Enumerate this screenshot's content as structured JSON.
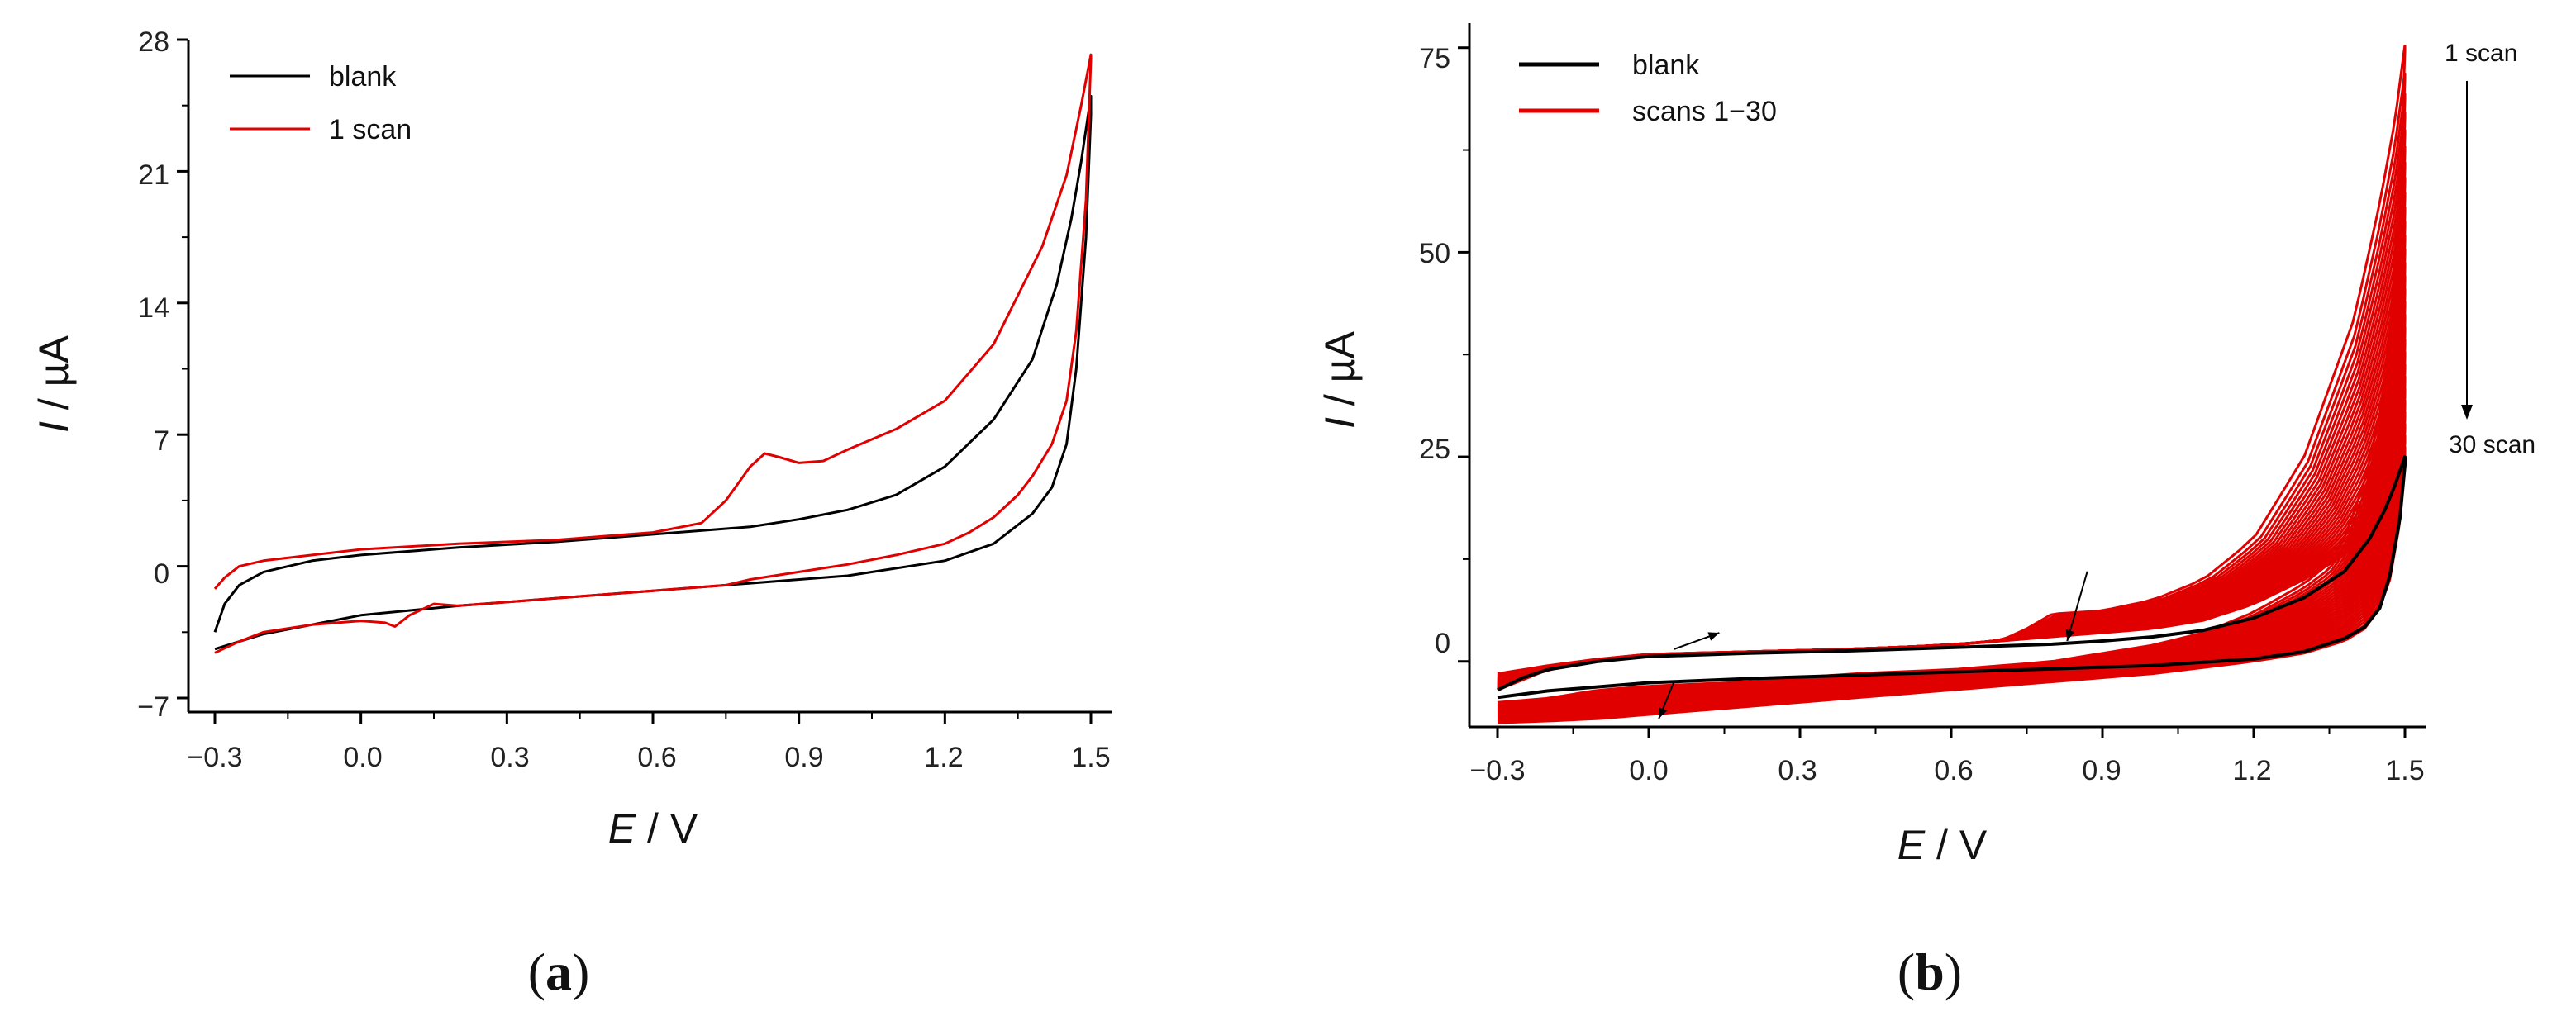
{
  "chart_data": [
    {
      "type": "line",
      "panel": "a",
      "panel_label": "a",
      "xlabel_var": "E",
      "xlabel_unit": " / V",
      "ylabel_var": "I",
      "ylabel_unit": " / µA",
      "xlim": [
        -0.3,
        1.5
      ],
      "ylim": [
        -7,
        28
      ],
      "xticks": [
        -0.3,
        0.0,
        0.3,
        0.6,
        0.9,
        1.2,
        1.5
      ],
      "xtick_labels": [
        "−0.3",
        "0.0",
        "0.3",
        "0.6",
        "0.9",
        "1.2",
        "1.5"
      ],
      "yticks": [
        -7,
        0,
        7,
        14,
        21,
        28
      ],
      "ytick_labels": [
        "−7",
        "0",
        "7",
        "14",
        "21",
        "28"
      ],
      "legend_position": "top-left",
      "series": [
        {
          "name": "blank",
          "color": "#000000",
          "x": [
            -0.3,
            -0.28,
            -0.25,
            -0.2,
            -0.1,
            0.0,
            0.2,
            0.4,
            0.6,
            0.8,
            0.9,
            1.0,
            1.1,
            1.2,
            1.3,
            1.38,
            1.43,
            1.46,
            1.48,
            1.5,
            1.5,
            1.49,
            1.47,
            1.45,
            1.42,
            1.38,
            1.3,
            1.2,
            1.0,
            0.8,
            0.6,
            0.4,
            0.2,
            0.0,
            -0.1,
            -0.2,
            -0.25,
            -0.3
          ],
          "y": [
            -3.5,
            -2.0,
            -1.0,
            -0.3,
            0.3,
            0.6,
            1.0,
            1.3,
            1.7,
            2.1,
            2.5,
            3.0,
            3.8,
            5.3,
            7.8,
            11.0,
            15.0,
            18.5,
            21.5,
            25.0,
            24.0,
            17.5,
            10.5,
            6.5,
            4.2,
            2.8,
            1.2,
            0.3,
            -0.5,
            -0.9,
            -1.3,
            -1.7,
            -2.1,
            -2.6,
            -3.1,
            -3.6,
            -4.0,
            -4.4
          ]
        },
        {
          "name": "1 scan",
          "color": "#e00000",
          "x": [
            -0.3,
            -0.28,
            -0.25,
            -0.2,
            -0.1,
            0.0,
            0.2,
            0.4,
            0.6,
            0.7,
            0.75,
            0.8,
            0.83,
            0.86,
            0.9,
            0.95,
            1.0,
            1.1,
            1.2,
            1.3,
            1.4,
            1.45,
            1.48,
            1.5,
            1.5,
            1.49,
            1.47,
            1.45,
            1.42,
            1.38,
            1.35,
            1.3,
            1.25,
            1.2,
            1.1,
            1.0,
            0.9,
            0.8,
            0.75,
            0.7,
            0.6,
            0.5,
            0.4,
            0.3,
            0.2,
            0.15,
            0.1,
            0.07,
            0.05,
            0.0,
            -0.1,
            -0.2,
            -0.25,
            -0.3
          ],
          "y": [
            -1.2,
            -0.6,
            0.0,
            0.3,
            0.6,
            0.9,
            1.2,
            1.4,
            1.8,
            2.3,
            3.5,
            5.3,
            6.0,
            5.8,
            5.5,
            5.6,
            6.2,
            7.3,
            8.8,
            11.8,
            17.0,
            20.8,
            24.5,
            27.2,
            27.0,
            19.5,
            12.5,
            8.8,
            6.5,
            4.8,
            3.8,
            2.6,
            1.8,
            1.2,
            0.6,
            0.1,
            -0.3,
            -0.7,
            -1.0,
            -1.1,
            -1.3,
            -1.5,
            -1.7,
            -1.9,
            -2.1,
            -2.0,
            -2.6,
            -3.2,
            -3.0,
            -2.9,
            -3.1,
            -3.5,
            -4.0,
            -4.6
          ]
        }
      ]
    },
    {
      "type": "line",
      "panel": "b",
      "panel_label": "b",
      "xlabel_var": "E",
      "xlabel_unit": " / V",
      "ylabel_var": "I",
      "ylabel_unit": " / µA",
      "xlim": [
        -0.3,
        1.5
      ],
      "ylim": [
        -8,
        78
      ],
      "xticks": [
        -0.3,
        0.0,
        0.3,
        0.6,
        0.9,
        1.2,
        1.5
      ],
      "xtick_labels": [
        "−0.3",
        "0.0",
        "0.3",
        "0.6",
        "0.9",
        "1.2",
        "1.5"
      ],
      "yticks": [
        0,
        25,
        50,
        75
      ],
      "ytick_labels": [
        "0",
        "25",
        "50",
        "75"
      ],
      "legend_position": "top-left",
      "annotations": {
        "top": "1 scan",
        "bottom": "30 scan"
      },
      "scans_envelope": {
        "name": "scans 1−30",
        "color": "#e00000",
        "scan_count": 30,
        "first_scan": {
          "x": [
            -0.3,
            -0.2,
            -0.1,
            0.0,
            0.2,
            0.4,
            0.6,
            0.7,
            0.75,
            0.8,
            0.85,
            0.9,
            1.0,
            1.1,
            1.2,
            1.3,
            1.4,
            1.45,
            1.48,
            1.5,
            1.5,
            1.49,
            1.47,
            1.45,
            1.42,
            1.38,
            1.35,
            1.3,
            1.2,
            1.1,
            1.0,
            0.8,
            0.6,
            0.4,
            0.2,
            0.0,
            -0.1,
            -0.2,
            -0.3
          ],
          "y": [
            -1.5,
            -0.5,
            0.3,
            0.9,
            1.2,
            1.5,
            2.0,
            2.6,
            4.0,
            5.8,
            6.0,
            6.2,
            7.5,
            10.0,
            15.0,
            25.0,
            42.0,
            56.0,
            66.0,
            75.5,
            74.5,
            58.0,
            40.0,
            30.0,
            22.0,
            15.0,
            12.0,
            9.5,
            6.0,
            3.5,
            2.0,
            0.0,
            -1.0,
            -1.5,
            -2.5,
            -3.0,
            -3.5,
            -4.5,
            -5.0
          ]
        },
        "last_scan": {
          "x": [
            -0.3,
            -0.2,
            -0.1,
            0.0,
            0.2,
            0.4,
            0.6,
            0.8,
            0.9,
            1.0,
            1.1,
            1.2,
            1.3,
            1.38,
            1.43,
            1.46,
            1.48,
            1.5,
            1.5,
            1.49,
            1.47,
            1.45,
            1.42,
            1.38,
            1.3,
            1.2,
            1.0,
            0.8,
            0.6,
            0.4,
            0.2,
            0.0,
            -0.1,
            -0.2,
            -0.3
          ],
          "y": [
            -3.5,
            -1.0,
            0.0,
            0.8,
            1.2,
            1.5,
            2.0,
            3.0,
            3.5,
            4.0,
            5.0,
            7.0,
            10.0,
            13.0,
            16.0,
            19.0,
            22.0,
            25.0,
            24.0,
            17.0,
            10.0,
            6.5,
            4.0,
            2.5,
            1.0,
            0.0,
            -1.5,
            -2.5,
            -3.5,
            -4.5,
            -5.5,
            -6.5,
            -7.0,
            -7.3,
            -7.5
          ]
        }
      },
      "series": [
        {
          "name": "blank",
          "color": "#000000",
          "x": [
            -0.3,
            -0.25,
            -0.2,
            -0.1,
            0.0,
            0.2,
            0.4,
            0.6,
            0.8,
            0.9,
            1.0,
            1.1,
            1.2,
            1.3,
            1.38,
            1.43,
            1.46,
            1.48,
            1.5,
            1.5,
            1.49,
            1.47,
            1.45,
            1.42,
            1.38,
            1.3,
            1.2,
            1.0,
            0.8,
            0.6,
            0.4,
            0.2,
            0.0,
            -0.1,
            -0.2,
            -0.25,
            -0.3
          ],
          "y": [
            -3.5,
            -2.0,
            -1.0,
            0.0,
            0.6,
            1.0,
            1.3,
            1.7,
            2.1,
            2.5,
            3.0,
            3.8,
            5.3,
            7.8,
            11.0,
            15.0,
            18.5,
            21.5,
            25.0,
            24.0,
            17.5,
            10.5,
            6.5,
            4.2,
            2.8,
            1.2,
            0.3,
            -0.5,
            -0.9,
            -1.3,
            -1.7,
            -2.1,
            -2.6,
            -3.1,
            -3.6,
            -4.0,
            -4.4
          ]
        }
      ]
    }
  ]
}
